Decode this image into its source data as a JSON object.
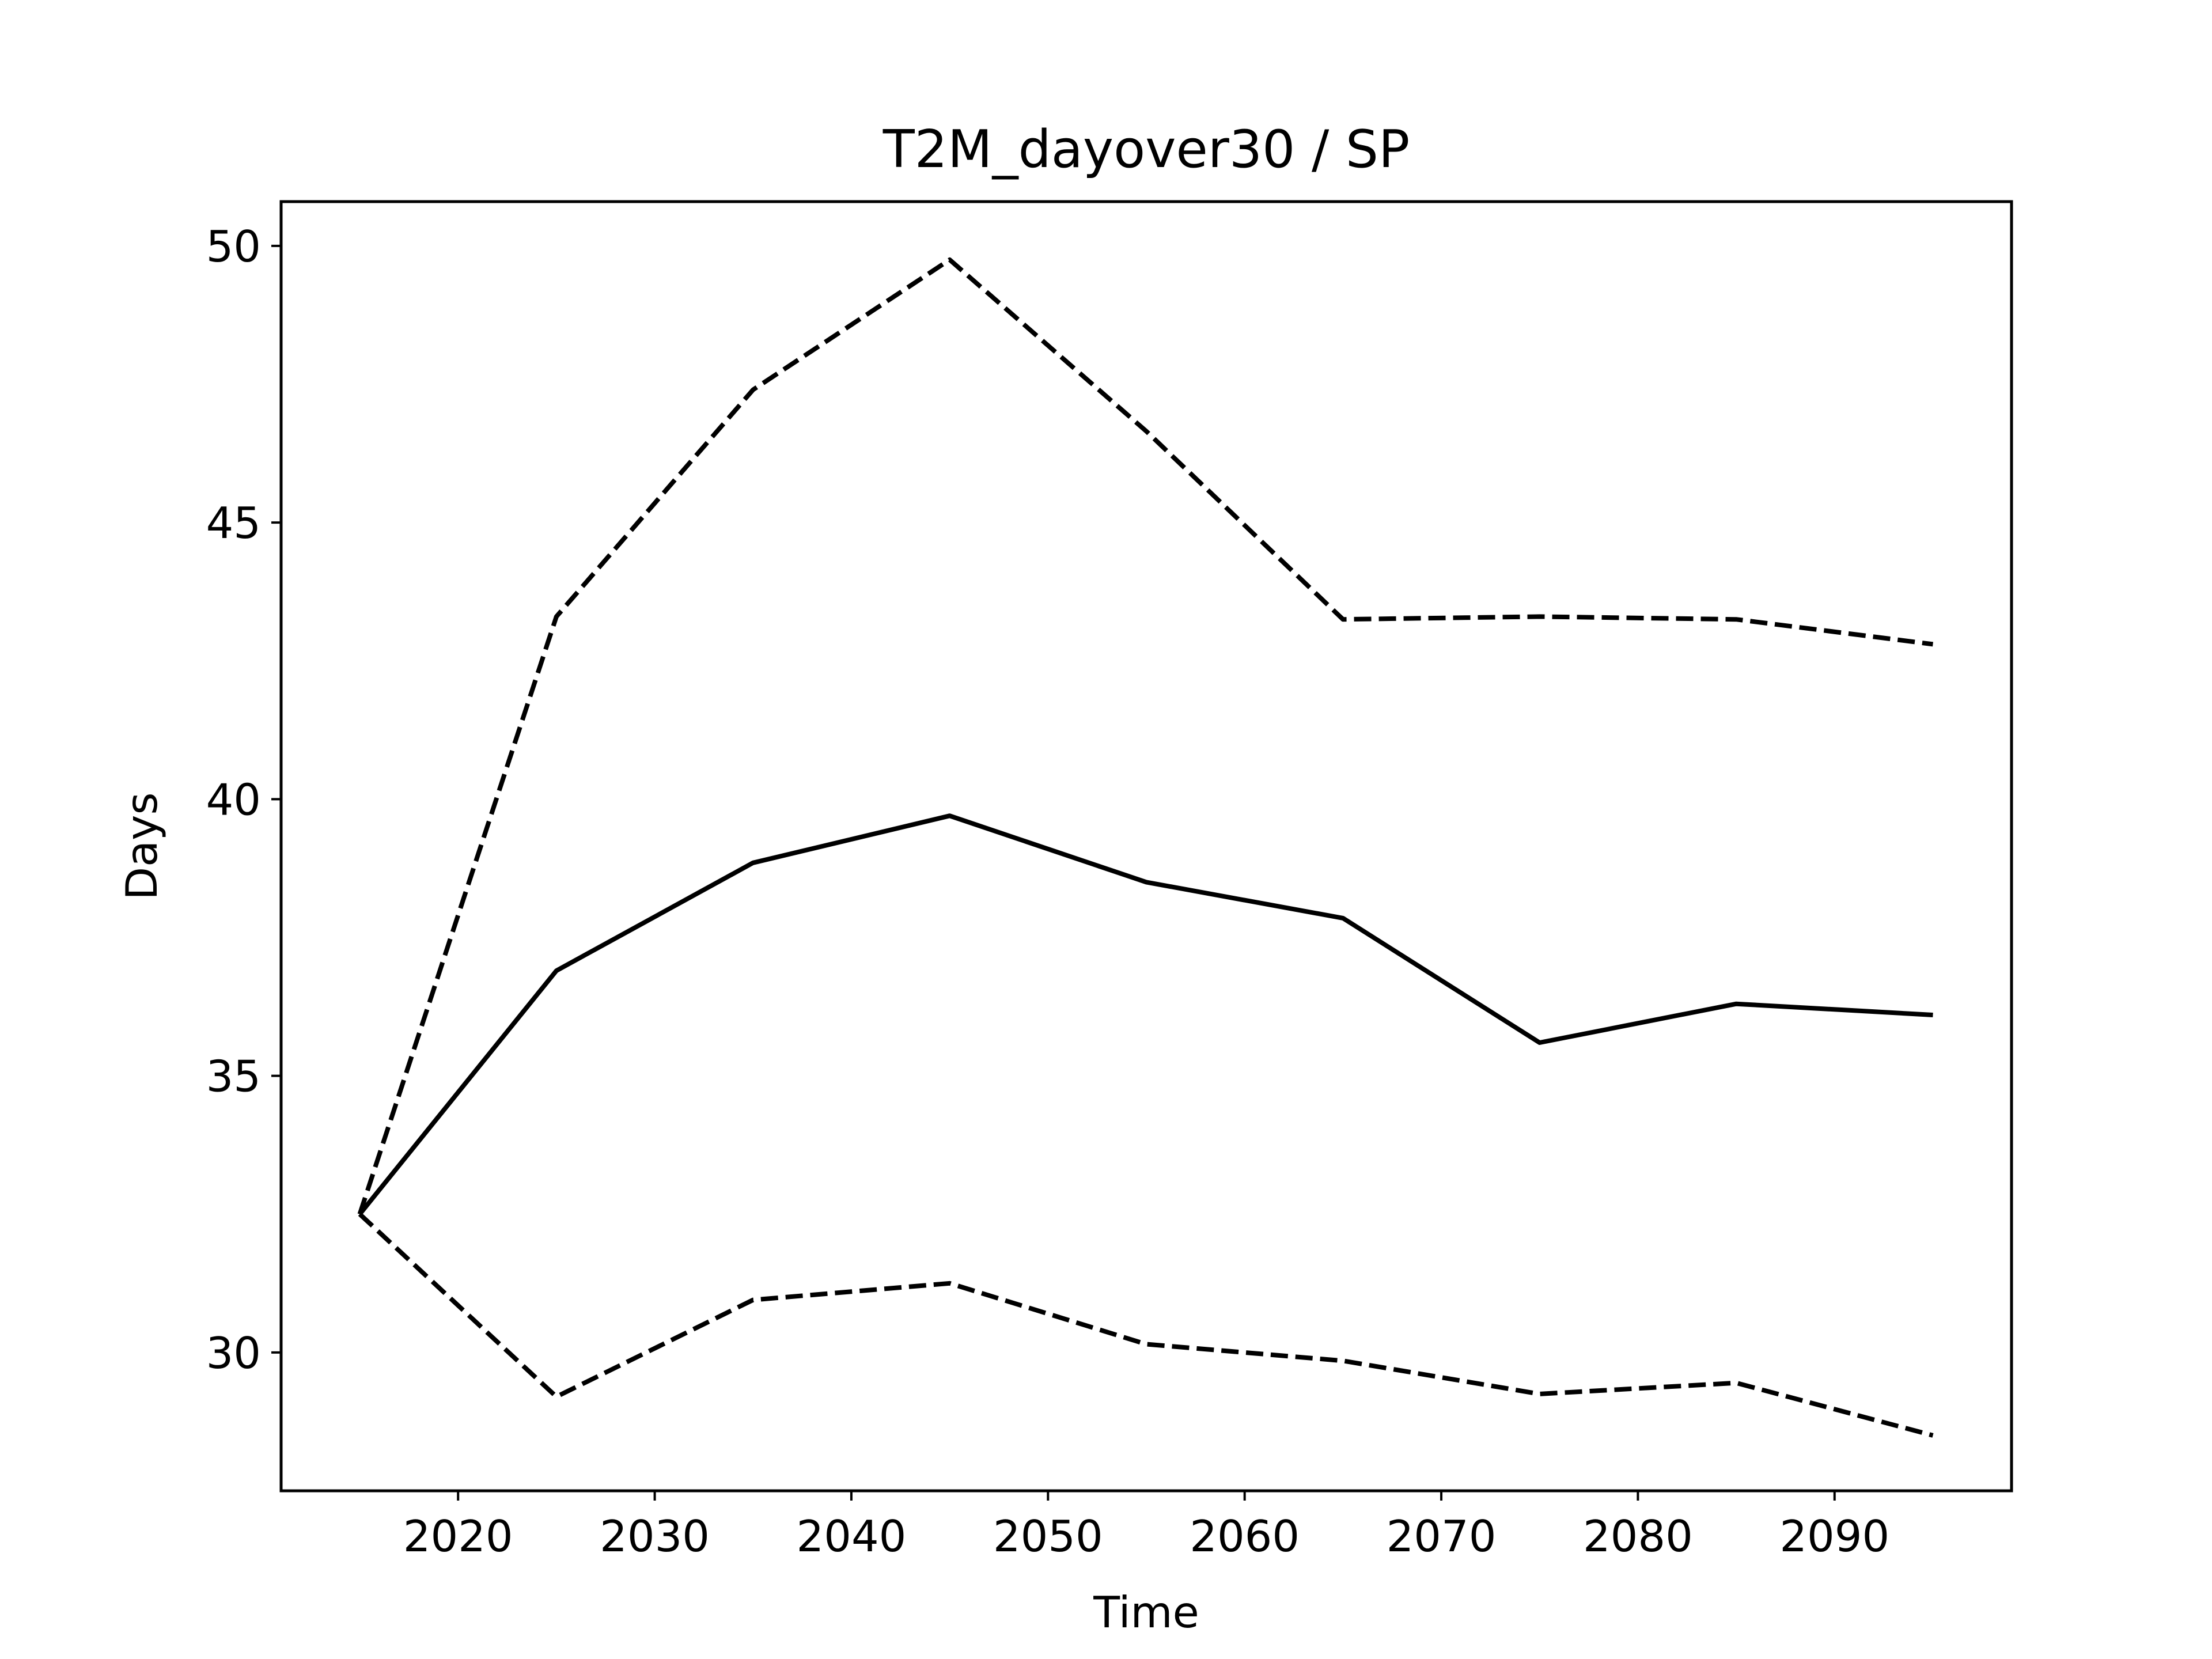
{
  "chart_data": {
    "type": "line",
    "title": "T2M_dayover30 / SP",
    "xlabel": "Time",
    "ylabel": "Days",
    "x": [
      2015,
      2025,
      2035,
      2045,
      2055,
      2065,
      2075,
      2085,
      2095
    ],
    "xlim": [
      2011,
      2099
    ],
    "ylim": [
      27.5,
      50.8
    ],
    "xticks": [
      2020,
      2030,
      2040,
      2050,
      2060,
      2070,
      2080,
      2090
    ],
    "yticks": [
      30,
      35,
      40,
      45,
      50
    ],
    "grid": false,
    "series": [
      {
        "style": "solid",
        "color": "#000000",
        "values": [
          32.5,
          36.9,
          38.85,
          39.7,
          38.5,
          37.85,
          35.6,
          36.3,
          36.1
        ]
      },
      {
        "style": "dashed",
        "color": "#000000",
        "values": [
          32.5,
          43.3,
          47.4,
          49.75,
          46.65,
          43.25,
          43.3,
          43.25,
          42.8
        ]
      },
      {
        "style": "dashed",
        "color": "#000000",
        "values": [
          32.5,
          29.2,
          30.95,
          31.25,
          30.15,
          29.85,
          29.25,
          29.45,
          28.5
        ]
      }
    ]
  }
}
